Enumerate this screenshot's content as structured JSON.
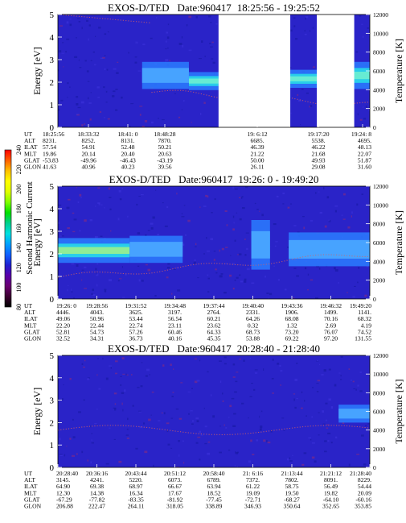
{
  "colors": {
    "background": "#2a23c8",
    "cold": "#1a1aa8",
    "warm": "#2a7cff",
    "hot": "#28d8e8",
    "peak": "#9cf08c",
    "datagap": "#ffffff",
    "temperature_trace": "#d86060"
  },
  "colorbar": {
    "label": "Second Harmonic Current",
    "ticks": [
      "80",
      "100",
      "120",
      "140",
      "160",
      "180",
      "200",
      "220",
      "240"
    ],
    "colors": [
      "#000000",
      "#3c0030",
      "#6a0070",
      "#5a00a8",
      "#2020d0",
      "#1060ff",
      "#00a0ff",
      "#00e0e0",
      "#00d090",
      "#00e000",
      "#80ff00",
      "#e0ff00",
      "#ffff00",
      "#ffc000",
      "#ff6000",
      "#ff0000"
    ]
  },
  "chart_data": [
    {
      "type": "heatmap",
      "title": "EXOS-D/TED",
      "date_label": "Date:960417",
      "time_range": "18:25:56 - 19:25:52",
      "ylabel": "Energy [eV]",
      "y2label": "Temperature [K]",
      "ylim": [
        0,
        5
      ],
      "y_ticks": [
        "0",
        "1",
        "2",
        "3",
        "4",
        "5"
      ],
      "y2lim": [
        0,
        12000
      ],
      "y2_ticks": [
        "0",
        "2000",
        "4000",
        "6000",
        "8000",
        "10000",
        "12000"
      ],
      "gaps": [
        [
          0.515,
          0.745
        ],
        [
          0.83,
          0.95
        ]
      ],
      "band": [
        {
          "t0": 0.27,
          "t1": 0.42,
          "center": 2.3,
          "width": 1.2,
          "level": "warm"
        },
        {
          "t0": 0.42,
          "t1": 0.515,
          "center": 2.05,
          "width": 0.8,
          "level": "hot"
        },
        {
          "t0": 0.745,
          "t1": 0.83,
          "center": 2.15,
          "width": 0.8,
          "level": "hot"
        },
        {
          "t0": 0.95,
          "t1": 1.0,
          "center": 2.3,
          "width": 1.2,
          "level": "hot"
        }
      ],
      "x_labels": [
        "18:25:56",
        "18:33:32",
        "18:41: 0",
        "18:48:28",
        "19: 6:12",
        "19:17:20",
        "19:24: 8"
      ],
      "rows": [
        {
          "name": "UT",
          "values": [
            "18:25:56",
            "18:33:32",
            "18:41: 0",
            "18:48:28",
            "19: 6:12",
            "19:17:20",
            "19:24: 8"
          ]
        },
        {
          "name": "ALT",
          "values": [
            "8231.",
            "8252.",
            "8131.",
            "7870.",
            "6685.",
            "5538.",
            "4695."
          ]
        },
        {
          "name": "ILAT",
          "values": [
            "57.54",
            "54.91",
            "52.48",
            "50.21",
            "46.39",
            "46.22",
            "48.13"
          ]
        },
        {
          "name": "MLT",
          "values": [
            "19.86",
            "20.14",
            "20.40",
            "20.63",
            "21.22",
            "21.68",
            "22.07"
          ]
        },
        {
          "name": "GLAT",
          "values": [
            "-53.83",
            "-49.96",
            "-46.43",
            "-43.19",
            "50.00",
            "49.93",
            "51.87"
          ]
        },
        {
          "name": "GLON",
          "values": [
            "41.63",
            "40.96",
            "40.23",
            "39.56",
            "26.11",
            "29.08",
            "31.60"
          ]
        }
      ]
    },
    {
      "type": "heatmap",
      "title": "EXOS-D/TED",
      "date_label": "Date:960417",
      "time_range": "19:26: 0 - 19:49:20",
      "ylabel": "Energy [eV]",
      "y2label": "Temperature [K]",
      "ylim": [
        0,
        5
      ],
      "y_ticks": [
        "0",
        "1",
        "2",
        "3",
        "4",
        "5"
      ],
      "y2lim": [
        0,
        12000
      ],
      "y2_ticks": [
        "0",
        "2000",
        "4000",
        "6000",
        "8000",
        "10000",
        "12000"
      ],
      "gaps": [],
      "band": [
        {
          "t0": 0.0,
          "t1": 0.23,
          "center": 2.15,
          "width": 1.1,
          "level": "peak"
        },
        {
          "t0": 0.23,
          "t1": 0.4,
          "center": 2.2,
          "width": 1.2,
          "level": "warm"
        },
        {
          "t0": 0.62,
          "t1": 0.68,
          "center": 2.4,
          "width": 2.2,
          "level": "warm"
        },
        {
          "t0": 0.74,
          "t1": 1.0,
          "center": 2.2,
          "width": 1.5,
          "level": "warm"
        }
      ],
      "x_labels": [
        "19:26: 0",
        "19:28:56",
        "19:31:52",
        "19:34:48",
        "19:37:44",
        "19:40:40",
        "19:43:36",
        "19:46:32",
        "19:49:20"
      ],
      "rows": [
        {
          "name": "UT",
          "values": [
            "19:26: 0",
            "19:28:56",
            "19:31:52",
            "19:34:48",
            "19:37:44",
            "19:40:40",
            "19:43:36",
            "19:46:32",
            "19:49:20"
          ]
        },
        {
          "name": "ALT",
          "values": [
            "4446.",
            "4043.",
            "3625.",
            "3197.",
            "2764.",
            "2331.",
            "1906.",
            "1499.",
            "1141."
          ]
        },
        {
          "name": "ILAT",
          "values": [
            "49.06",
            "50.96",
            "53.44",
            "56.54",
            "60.21",
            "64.26",
            "68.08",
            "70.16",
            "68.32"
          ]
        },
        {
          "name": "MLT",
          "values": [
            "22.20",
            "22.44",
            "22.74",
            "23.11",
            "23.62",
            "0.32",
            "1.32",
            "2.69",
            "4.19"
          ]
        },
        {
          "name": "GLAT",
          "values": [
            "52.81",
            "54.73",
            "57.26",
            "60.46",
            "64.33",
            "68.73",
            "73.20",
            "76.07",
            "74.52"
          ]
        },
        {
          "name": "GLON",
          "values": [
            "32.52",
            "34.31",
            "36.73",
            "40.16",
            "45.35",
            "53.88",
            "69.22",
            "97.20",
            "131.55"
          ]
        }
      ]
    },
    {
      "type": "heatmap",
      "title": "EXOS-D/TED",
      "date_label": "Date:960417",
      "time_range": "20:28:40 - 21:28:40",
      "ylabel": "Energy [eV]",
      "y2label": "Temperature [K]",
      "ylim": [
        0,
        5
      ],
      "y_ticks": [
        "0",
        "1",
        "2",
        "3",
        "4",
        "5"
      ],
      "y2lim": [
        0,
        12000
      ],
      "y2_ticks": [
        "0",
        "2000",
        "4000",
        "6000",
        "8000",
        "10000",
        "12000"
      ],
      "gaps": [],
      "band": [
        {
          "t0": 0.9,
          "t1": 1.0,
          "center": 2.4,
          "width": 0.8,
          "level": "warm"
        }
      ],
      "x_labels": [
        "20:28:40",
        "20:36:16",
        "20:43:44",
        "20:51:12",
        "20:58:40",
        "21: 6:16",
        "21:13:44",
        "21:21:12",
        "21:28:40"
      ],
      "rows": [
        {
          "name": "UT",
          "values": [
            "20:28:40",
            "20:36:16",
            "20:43:44",
            "20:51:12",
            "20:58:40",
            "21: 6:16",
            "21:13:44",
            "21:21:12",
            "21:28:40"
          ]
        },
        {
          "name": "ALT",
          "values": [
            "3145.",
            "4241.",
            "5220.",
            "6073.",
            "6789.",
            "7372.",
            "7802.",
            "8091.",
            "8229."
          ]
        },
        {
          "name": "ILAT",
          "values": [
            "64.90",
            "69.38",
            "68.97",
            "66.67",
            "63.94",
            "61.22",
            "58.75",
            "56.49",
            "54.44"
          ]
        },
        {
          "name": "MLT",
          "values": [
            "12.30",
            "14.38",
            "16.34",
            "17.67",
            "18.52",
            "19.09",
            "19.50",
            "19.82",
            "20.09"
          ]
        },
        {
          "name": "GLAT",
          "values": [
            "-67.29",
            "-77.82",
            "-83.35",
            "-81.92",
            "-77.45",
            "-72.71",
            "-68.27",
            "-64.10",
            "-60.16"
          ]
        },
        {
          "name": "GLON",
          "values": [
            "206.88",
            "222.47",
            "264.11",
            "318.05",
            "338.89",
            "346.93",
            "350.64",
            "352.65",
            "353.85"
          ]
        }
      ]
    }
  ]
}
